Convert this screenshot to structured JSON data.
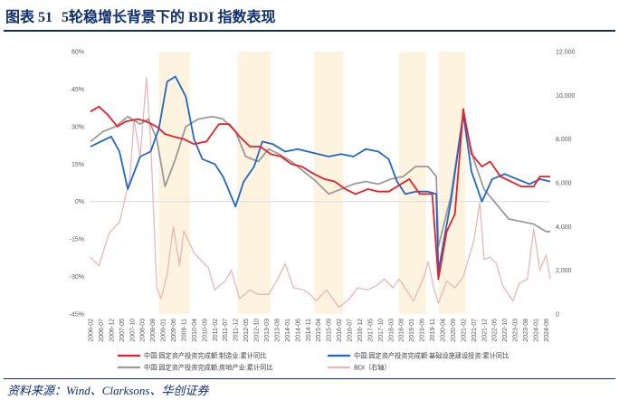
{
  "header": {
    "figure_label": "图表 51",
    "title": "5轮稳增长背景下的 BDI 指数表现"
  },
  "footer": {
    "source": "资料来源：Wind、Clarksons、华创证券"
  },
  "colors": {
    "manufacturing": "#e8202a",
    "infrastructure": "#2166c9",
    "real_estate": "#9a9a9a",
    "bdi": "#eab6b6",
    "shade": "#fdf3df",
    "title": "#0f2f6e"
  },
  "chart_data": {
    "type": "line",
    "title": "",
    "left_axis": {
      "ylim": [
        -45,
        60
      ],
      "tick_labels": [
        "60%",
        "45%",
        "30%",
        "15%",
        "0%",
        "-15%",
        "-30%",
        "-45%"
      ]
    },
    "right_axis": {
      "ylim": [
        0,
        12000
      ],
      "tick_labels": [
        "12,000",
        "10,000",
        "8,000",
        "6,000",
        "4,000",
        "2,000",
        "0"
      ]
    },
    "x_tick_labels": [
      "2006-02",
      "2006-07",
      "2006-12",
      "2007-05",
      "2007-10",
      "2008-03",
      "2008-08",
      "2009-01",
      "2009-06",
      "2009-11",
      "2010-04",
      "2010-09",
      "2011-02",
      "2011-07",
      "2011-12",
      "2012-05",
      "2012-10",
      "2013-03",
      "2013-08",
      "2014-01",
      "2014-06",
      "2014-11",
      "2015-04",
      "2015-09",
      "2016-02",
      "2016-07",
      "2016-12",
      "2017-05",
      "2017-10",
      "2018-03",
      "2018-08",
      "2019-01",
      "2019-06",
      "2019-11",
      "2020-04",
      "2020-09",
      "2021-02",
      "2021-07",
      "2021-12",
      "2022-05",
      "2022-10",
      "2023-03",
      "2023-08",
      "2024-01",
      "2024-06"
    ],
    "stimulus_periods": [
      [
        "2008-11",
        "2010-02"
      ],
      [
        "2012-01",
        "2013-05"
      ],
      [
        "2015-02",
        "2016-04"
      ],
      [
        "2018-07",
        "2019-08"
      ],
      [
        "2020-02",
        "2021-03"
      ]
    ],
    "series": [
      {
        "name": "中国:固定资产投资完成额:制造业:累计同比",
        "axis": "left",
        "points": [
          [
            "2006-02",
            36
          ],
          [
            "2006-06",
            38
          ],
          [
            "2006-10",
            35
          ],
          [
            "2007-03",
            30
          ],
          [
            "2007-07",
            32
          ],
          [
            "2008-01",
            33
          ],
          [
            "2008-05",
            32
          ],
          [
            "2008-10",
            30
          ],
          [
            "2009-02",
            27
          ],
          [
            "2009-06",
            26
          ],
          [
            "2009-11",
            25
          ],
          [
            "2010-04",
            23
          ],
          [
            "2010-10",
            24
          ],
          [
            "2011-04",
            31
          ],
          [
            "2011-09",
            31
          ],
          [
            "2012-02",
            26
          ],
          [
            "2012-07",
            22
          ],
          [
            "2012-12",
            22
          ],
          [
            "2013-05",
            19
          ],
          [
            "2013-10",
            18
          ],
          [
            "2014-03",
            15
          ],
          [
            "2014-08",
            14
          ],
          [
            "2015-02",
            11
          ],
          [
            "2015-07",
            9
          ],
          [
            "2015-12",
            8
          ],
          [
            "2016-05",
            5
          ],
          [
            "2016-10",
            3
          ],
          [
            "2017-04",
            5
          ],
          [
            "2017-09",
            4
          ],
          [
            "2018-02",
            4
          ],
          [
            "2018-08",
            7
          ],
          [
            "2018-12",
            9
          ],
          [
            "2019-05",
            3
          ],
          [
            "2019-11",
            3
          ],
          [
            "2020-02",
            -31
          ],
          [
            "2020-06",
            -12
          ],
          [
            "2020-10",
            -5
          ],
          [
            "2021-02",
            37
          ],
          [
            "2021-06",
            19
          ],
          [
            "2021-11",
            14
          ],
          [
            "2022-03",
            16
          ],
          [
            "2022-08",
            10
          ],
          [
            "2023-01",
            8
          ],
          [
            "2023-06",
            6
          ],
          [
            "2023-12",
            6
          ],
          [
            "2024-03",
            10
          ],
          [
            "2024-08",
            10
          ]
        ]
      },
      {
        "name": "中国:固定资产投资完成额:基础设施建设投资:累计同比",
        "axis": "left",
        "points": [
          [
            "2006-02",
            22
          ],
          [
            "2006-07",
            24
          ],
          [
            "2006-12",
            26
          ],
          [
            "2007-04",
            20
          ],
          [
            "2007-08",
            5
          ],
          [
            "2008-02",
            18
          ],
          [
            "2008-07",
            20
          ],
          [
            "2008-11",
            29
          ],
          [
            "2009-03",
            48
          ],
          [
            "2009-07",
            50
          ],
          [
            "2009-12",
            42
          ],
          [
            "2010-04",
            25
          ],
          [
            "2010-08",
            17
          ],
          [
            "2011-02",
            15
          ],
          [
            "2011-06",
            10
          ],
          [
            "2011-12",
            -2
          ],
          [
            "2012-04",
            8
          ],
          [
            "2012-09",
            14
          ],
          [
            "2013-01",
            24
          ],
          [
            "2013-06",
            23
          ],
          [
            "2013-12",
            20
          ],
          [
            "2014-06",
            21
          ],
          [
            "2014-11",
            20
          ],
          [
            "2015-04",
            19
          ],
          [
            "2015-09",
            18
          ],
          [
            "2016-03",
            19
          ],
          [
            "2016-09",
            18
          ],
          [
            "2017-03",
            21
          ],
          [
            "2017-09",
            20
          ],
          [
            "2018-02",
            17
          ],
          [
            "2018-06",
            8
          ],
          [
            "2018-10",
            3
          ],
          [
            "2019-03",
            4
          ],
          [
            "2019-09",
            4
          ],
          [
            "2020-01",
            3
          ],
          [
            "2020-02",
            -28
          ],
          [
            "2020-08",
            0
          ],
          [
            "2021-02",
            35
          ],
          [
            "2021-06",
            12
          ],
          [
            "2021-11",
            0
          ],
          [
            "2022-04",
            9
          ],
          [
            "2022-10",
            11
          ],
          [
            "2023-04",
            9
          ],
          [
            "2023-10",
            7
          ],
          [
            "2024-03",
            9
          ],
          [
            "2024-08",
            8
          ]
        ]
      },
      {
        "name": "中国:固定资产投资完成额:房地产业:累计同比",
        "axis": "left",
        "points": [
          [
            "2006-02",
            24
          ],
          [
            "2006-08",
            28
          ],
          [
            "2007-02",
            30
          ],
          [
            "2007-08",
            34
          ],
          [
            "2008-02",
            31
          ],
          [
            "2008-06",
            33
          ],
          [
            "2008-10",
            25
          ],
          [
            "2009-02",
            6
          ],
          [
            "2009-07",
            17
          ],
          [
            "2009-12",
            30
          ],
          [
            "2010-06",
            33
          ],
          [
            "2011-01",
            34
          ],
          [
            "2011-06",
            33
          ],
          [
            "2011-12",
            28
          ],
          [
            "2012-05",
            18
          ],
          [
            "2012-11",
            16
          ],
          [
            "2013-04",
            21
          ],
          [
            "2013-09",
            19
          ],
          [
            "2014-03",
            16
          ],
          [
            "2014-09",
            12
          ],
          [
            "2015-03",
            8
          ],
          [
            "2015-09",
            3
          ],
          [
            "2016-03",
            5
          ],
          [
            "2016-09",
            7
          ],
          [
            "2017-03",
            8
          ],
          [
            "2017-09",
            7
          ],
          [
            "2018-03",
            9
          ],
          [
            "2018-09",
            10
          ],
          [
            "2019-03",
            14
          ],
          [
            "2019-09",
            14
          ],
          [
            "2020-01",
            10
          ],
          [
            "2020-02",
            -18
          ],
          [
            "2020-08",
            2
          ],
          [
            "2021-02",
            35
          ],
          [
            "2021-07",
            17
          ],
          [
            "2021-12",
            5
          ],
          [
            "2022-05",
            0
          ],
          [
            "2022-12",
            -7
          ],
          [
            "2023-06",
            -8
          ],
          [
            "2023-12",
            -9
          ],
          [
            "2024-06",
            -12
          ],
          [
            "2024-08",
            -12
          ]
        ]
      },
      {
        "name": "BDI（右轴）",
        "axis": "right",
        "points": [
          [
            "2006-02",
            2600
          ],
          [
            "2006-06",
            2200
          ],
          [
            "2006-11",
            3700
          ],
          [
            "2007-04",
            4200
          ],
          [
            "2007-09",
            6200
          ],
          [
            "2007-11",
            8900
          ],
          [
            "2008-02",
            7200
          ],
          [
            "2008-05",
            10800
          ],
          [
            "2008-07",
            8000
          ],
          [
            "2008-10",
            1200
          ],
          [
            "2008-12",
            700
          ],
          [
            "2009-03",
            1800
          ],
          [
            "2009-06",
            4000
          ],
          [
            "2009-09",
            2200
          ],
          [
            "2009-11",
            3800
          ],
          [
            "2010-04",
            2800
          ],
          [
            "2010-08",
            2400
          ],
          [
            "2010-11",
            2100
          ],
          [
            "2011-02",
            1100
          ],
          [
            "2011-07",
            1500
          ],
          [
            "2011-10",
            2000
          ],
          [
            "2012-02",
            700
          ],
          [
            "2012-07",
            1100
          ],
          [
            "2012-11",
            900
          ],
          [
            "2013-04",
            900
          ],
          [
            "2013-09",
            1700
          ],
          [
            "2013-12",
            2300
          ],
          [
            "2014-04",
            1200
          ],
          [
            "2014-09",
            1100
          ],
          [
            "2014-12",
            900
          ],
          [
            "2015-03",
            600
          ],
          [
            "2015-08",
            1100
          ],
          [
            "2016-02",
            300
          ],
          [
            "2016-07",
            700
          ],
          [
            "2016-11",
            1200
          ],
          [
            "2017-04",
            1100
          ],
          [
            "2017-08",
            1300
          ],
          [
            "2017-12",
            1600
          ],
          [
            "2018-04",
            1200
          ],
          [
            "2018-07",
            1600
          ],
          [
            "2019-02",
            600
          ],
          [
            "2019-07",
            1700
          ],
          [
            "2019-09",
            2400
          ],
          [
            "2019-12",
            1100
          ],
          [
            "2020-02",
            500
          ],
          [
            "2020-06",
            1500
          ],
          [
            "2020-10",
            1200
          ],
          [
            "2021-02",
            1700
          ],
          [
            "2021-07",
            3300
          ],
          [
            "2021-10",
            5100
          ],
          [
            "2021-12",
            2500
          ],
          [
            "2022-03",
            2600
          ],
          [
            "2022-06",
            2300
          ],
          [
            "2022-09",
            1300
          ],
          [
            "2023-02",
            600
          ],
          [
            "2023-05",
            1400
          ],
          [
            "2023-09",
            1600
          ],
          [
            "2023-12",
            3900
          ],
          [
            "2024-03",
            2000
          ],
          [
            "2024-06",
            2700
          ],
          [
            "2024-08",
            1600
          ]
        ]
      }
    ]
  }
}
